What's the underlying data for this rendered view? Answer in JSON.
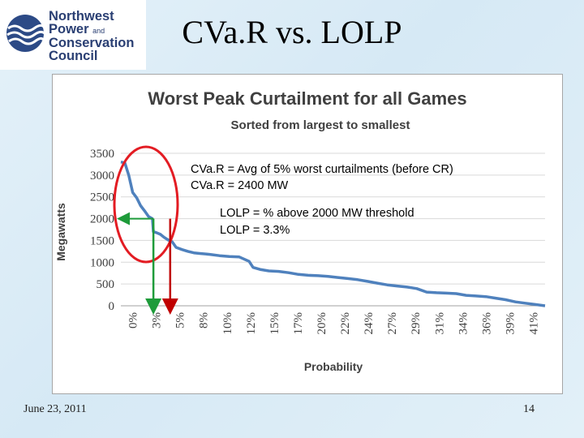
{
  "slide": {
    "title": "CVa.R vs. LOLP",
    "date": "June 23, 2011",
    "page_number": "14"
  },
  "logo": {
    "line1": "Northwest",
    "line2_main": "Power",
    "line2_small": "and",
    "line3": "Conservation",
    "line4": "Council"
  },
  "annotations": {
    "cvar_def": "CVa.R = Avg of 5% worst curtailments (before CR)",
    "cvar_value": "CVa.R = 2400 MW",
    "lolp_def": "LOLP = % above 2000 MW threshold",
    "lolp_value": "LOLP = 3.3%"
  },
  "colors": {
    "line": "#4f81bd",
    "circle": "#e31c23",
    "cvar_arrow": "#c00000",
    "lolp_arrow": "#1e9b3a",
    "gridline": "#d9d9d9"
  },
  "chart_data": {
    "type": "line",
    "title": "Worst Peak Curtailment for all Games",
    "subtitle": "Sorted from largest to smallest",
    "xlabel": "Probability",
    "ylabel": "Megawatts",
    "ylim": [
      0,
      3500
    ],
    "xlim": [
      0,
      43
    ],
    "yticks": [
      "3500",
      "3000",
      "2500",
      "2000",
      "1500",
      "1000",
      "500",
      "0"
    ],
    "xticks": [
      "0%",
      "3%",
      "5%",
      "8%",
      "10%",
      "12%",
      "15%",
      "17%",
      "20%",
      "22%",
      "24%",
      "27%",
      "29%",
      "31%",
      "34%",
      "36%",
      "39%",
      "41%"
    ],
    "grid": true,
    "legend": "none",
    "x": [
      0,
      0.4,
      0.8,
      1.2,
      1.6,
      2.0,
      2.4,
      2.8,
      3.2,
      3.3,
      3.6,
      4.0,
      4.4,
      4.8,
      5.2,
      5.6,
      6.2,
      6.8,
      7.4,
      8.0,
      9.0,
      10.0,
      11.0,
      12.0,
      13.0,
      13.4,
      14.2,
      15.0,
      16.0,
      17.0,
      18.0,
      19.0,
      20.0,
      21.0,
      22.0,
      23.0,
      24.0,
      25.0,
      26.0,
      27.0,
      28.0,
      29.0,
      30.0,
      31.0,
      32.0,
      33.0,
      34.0,
      35.0,
      36.0,
      37.0,
      38.0,
      39.0,
      40.0,
      41.0,
      42.0,
      43.0
    ],
    "values": [
      3300,
      3280,
      3000,
      2600,
      2480,
      2300,
      2180,
      2050,
      2000,
      1700,
      1680,
      1640,
      1570,
      1510,
      1470,
      1340,
      1290,
      1250,
      1215,
      1200,
      1180,
      1150,
      1130,
      1120,
      1020,
      880,
      830,
      800,
      790,
      760,
      720,
      700,
      690,
      675,
      650,
      625,
      600,
      560,
      520,
      480,
      455,
      430,
      395,
      315,
      300,
      290,
      280,
      240,
      225,
      210,
      175,
      140,
      90,
      60,
      30,
      0
    ],
    "thresholds": {
      "cvar_mw": 2400,
      "lolp_mw": 2000,
      "cvar_probability_pct": 5,
      "lolp_probability_pct": 3.3
    }
  }
}
